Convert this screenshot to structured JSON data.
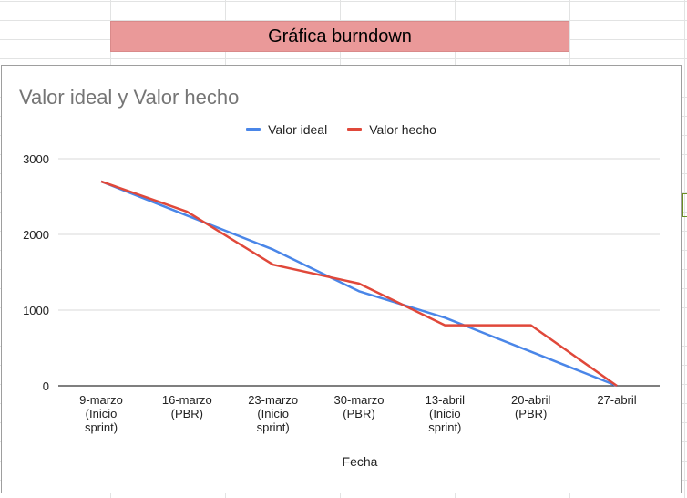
{
  "sheet": {
    "header_text": "Gráfica burndown"
  },
  "chart_data": {
    "type": "line",
    "title": "Valor ideal y Valor hecho",
    "xlabel": "Fecha",
    "ylabel": "",
    "ylim": [
      0,
      3000
    ],
    "yticks": [
      0,
      1000,
      2000,
      3000
    ],
    "grid": true,
    "legend_position": "top",
    "categories": [
      [
        "9-marzo",
        "(Inicio",
        "sprint)"
      ],
      [
        "16-marzo",
        "(PBR)"
      ],
      [
        "23-marzo",
        "(Inicio",
        "sprint)"
      ],
      [
        "30-marzo",
        "(PBR)"
      ],
      [
        "13-abril",
        "(Inicio",
        "sprint)"
      ],
      [
        "20-abril",
        "(PBR)"
      ],
      [
        "27-abril"
      ]
    ],
    "series": [
      {
        "name": "Valor ideal",
        "color": "#4a86e8",
        "values": [
          2700,
          2250,
          1800,
          1250,
          900,
          450,
          0
        ]
      },
      {
        "name": "Valor hecho",
        "color": "#e0483a",
        "values": [
          2700,
          2300,
          1600,
          1350,
          800,
          800,
          0
        ]
      }
    ]
  }
}
